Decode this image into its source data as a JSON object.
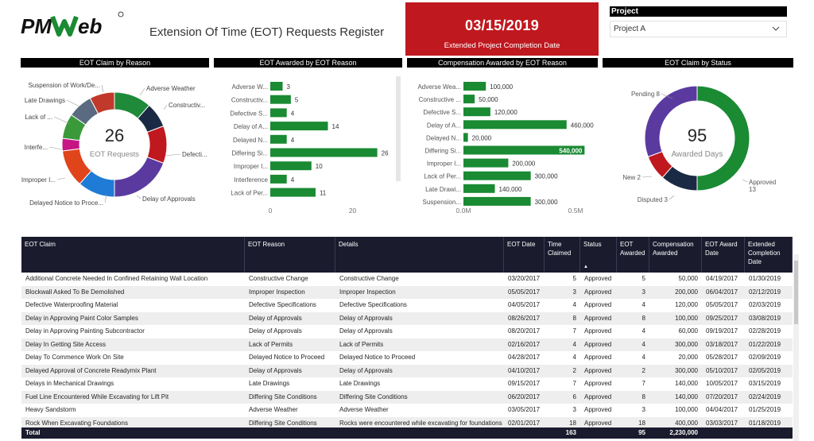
{
  "header": {
    "logo_text": "PMWeb",
    "title": "Extension Of Time (EOT) Requests Register"
  },
  "kpi": {
    "value": "03/15/2019",
    "label": "Extended Project Completion Date",
    "color": "#c0181f"
  },
  "slicer": {
    "label": "Project",
    "value": "Project A"
  },
  "visuals": {
    "v1_title": "EOT Claim by Reason",
    "v2_title": "EOT Awarded by EOT Reason",
    "v3_title": "Compensation Awarded by EOT Reason",
    "v4_title": "EOT Claim by Status"
  },
  "chart_data": [
    {
      "type": "pie",
      "donut": true,
      "center_value": "26",
      "center_label": "EOT Requests",
      "slice_labels": [
        "Adverse Weather",
        "Constructiv...",
        "Defecti...",
        "Delay of Approvals",
        "Delayed Notice to Proce...",
        "Improper I...",
        "Interfe...",
        "Lack of ...",
        "Late Drawings",
        "Suspension of Work/De..."
      ],
      "categories": [
        "Adverse Weather",
        "Constructive Change",
        "Defective Specifications",
        "Delay of Approvals",
        "Delayed Notice to Proceed",
        "Improper Inspection",
        "Interference",
        "Lack of Permits",
        "Late Drawings",
        "Suspension of Work/Delay"
      ],
      "values": [
        3,
        2,
        3,
        5,
        3,
        3,
        1,
        2,
        2,
        2
      ],
      "colors": [
        "#1f8a3a",
        "#1b2a44",
        "#c0181f",
        "#5b3aa0",
        "#1f7bd6",
        "#e0441b",
        "#c71585",
        "#3a9a3a",
        "#5a6a80",
        "#c0392b"
      ]
    },
    {
      "type": "bar",
      "orientation": "horizontal",
      "categories": [
        "Adverse W...",
        "Constructiv...",
        "Defective S...",
        "Delay of A...",
        "Delayed N...",
        "Differing Si...",
        "Improper I...",
        "Interference",
        "Lack of Per..."
      ],
      "values": [
        3,
        5,
        4,
        14,
        4,
        26,
        10,
        4,
        11
      ],
      "data_labels": [
        "3",
        "5",
        "4",
        "14",
        "4",
        "26",
        "10",
        "4",
        "11"
      ],
      "xlim": [
        0,
        28
      ],
      "xticks": [
        "0",
        "20"
      ],
      "xtick_values": [
        0,
        20
      ],
      "color": "#1a8a33"
    },
    {
      "type": "bar",
      "orientation": "horizontal",
      "categories": [
        "Adverse Wea...",
        "Constructive ...",
        "Defective S...",
        "Delay of A...",
        "Delayed N...",
        "Differing Si...",
        "Improper I...",
        "Lack of Per...",
        "Late Drawi...",
        "Suspension..."
      ],
      "values": [
        100000,
        50000,
        120000,
        460000,
        20000,
        540000,
        200000,
        300000,
        140000,
        300000
      ],
      "data_labels": [
        "100,000",
        "50,000",
        "120,000",
        "460,000",
        "20,000",
        "540,000",
        "200,000",
        "300,000",
        "140,000",
        "300,000"
      ],
      "xlim": [
        0,
        560000
      ],
      "xticks": [
        "0.0M",
        "0.5M"
      ],
      "xtick_values": [
        0,
        500000
      ],
      "color": "#1a8a33"
    },
    {
      "type": "pie",
      "donut": true,
      "center_value": "95",
      "center_label": "Awarded Days",
      "categories": [
        "Approved",
        "Disputed",
        "New",
        "Pending"
      ],
      "values": [
        13,
        3,
        2,
        8
      ],
      "data_labels": [
        "Approved\n13",
        "Disputed 3",
        "New 2",
        "Pending 8"
      ],
      "colors": [
        "#1a8a33",
        "#1b2a44",
        "#c0181f",
        "#5b3aa0"
      ]
    }
  ],
  "table": {
    "columns": [
      "EOT Claim",
      "EOT Reason",
      "Details",
      "EOT Date",
      "Time Claimed",
      "Status",
      "EOT Awarded",
      "Compensation Awarded",
      "EOT Award Date",
      "Extended Completion Date"
    ],
    "rows": [
      [
        "Additional Concrete Needed In Confined Retaining Wall Location",
        "Constructive Change",
        "Constructive Change",
        "03/20/2017",
        "5",
        "Approved",
        "5",
        "50,000",
        "04/19/2017",
        "01/30/2019"
      ],
      [
        "Blockwall Asked To Be Demolished",
        "Improper Inspection",
        "Improper Inspection",
        "05/05/2017",
        "3",
        "Approved",
        "3",
        "200,000",
        "06/04/2017",
        "02/12/2019"
      ],
      [
        "Defective Waterproofing Material",
        "Defective Specifications",
        "Defective Specifications",
        "04/05/2017",
        "4",
        "Approved",
        "4",
        "120,000",
        "05/05/2017",
        "02/03/2019"
      ],
      [
        "Delay in Approving Paint Color Samples",
        "Delay of Approvals",
        "Delay of Approvals",
        "08/26/2017",
        "8",
        "Approved",
        "8",
        "100,000",
        "09/25/2017",
        "03/08/2019"
      ],
      [
        "Delay in Approving Painting Subcontractor",
        "Delay of Approvals",
        "Delay of Approvals",
        "08/20/2017",
        "7",
        "Approved",
        "4",
        "60,000",
        "09/19/2017",
        "02/28/2019"
      ],
      [
        "Delay In Getting Site Access",
        "Lack of Permits",
        "Lack of Permits",
        "02/16/2017",
        "4",
        "Approved",
        "4",
        "300,000",
        "03/18/2017",
        "01/22/2019"
      ],
      [
        "Delay To Commence Work On Site",
        "Delayed Notice to Proceed",
        "Delayed Notice to Proceed",
        "04/28/2017",
        "4",
        "Approved",
        "4",
        "20,000",
        "05/28/2017",
        "02/09/2019"
      ],
      [
        "Delayed Approval of Concrete Readymix Plant",
        "Delay of Approvals",
        "Delay of Approvals",
        "04/10/2017",
        "2",
        "Approved",
        "2",
        "300,000",
        "05/10/2017",
        "02/05/2019"
      ],
      [
        "Delays in Mechanical Drawings",
        "Late Drawings",
        "Late Drawings",
        "09/15/2017",
        "7",
        "Approved",
        "7",
        "140,000",
        "10/05/2017",
        "03/15/2019"
      ],
      [
        "Fuel Line Encountered While Excavating for Lift Pit",
        "Differing Site Conditions",
        "Differing Site Conditions",
        "06/20/2017",
        "6",
        "Approved",
        "8",
        "140,000",
        "07/20/2017",
        "02/24/2019"
      ],
      [
        "Heavy Sandstorm",
        "Adverse Weather",
        "Adverse Weather",
        "03/05/2017",
        "3",
        "Approved",
        "3",
        "100,000",
        "04/04/2017",
        "01/25/2019"
      ],
      [
        "Rock When Excavating Foundations",
        "Differing Site Conditions",
        "Rocks were encountered while excavating for foundations",
        "02/01/2017",
        "18",
        "Approved",
        "18",
        "400,000",
        "03/03/2017",
        "01/18/2019"
      ]
    ],
    "total": {
      "label": "Total",
      "time_claimed": "163",
      "eot_awarded": "95",
      "compensation": "2,230,000"
    }
  }
}
